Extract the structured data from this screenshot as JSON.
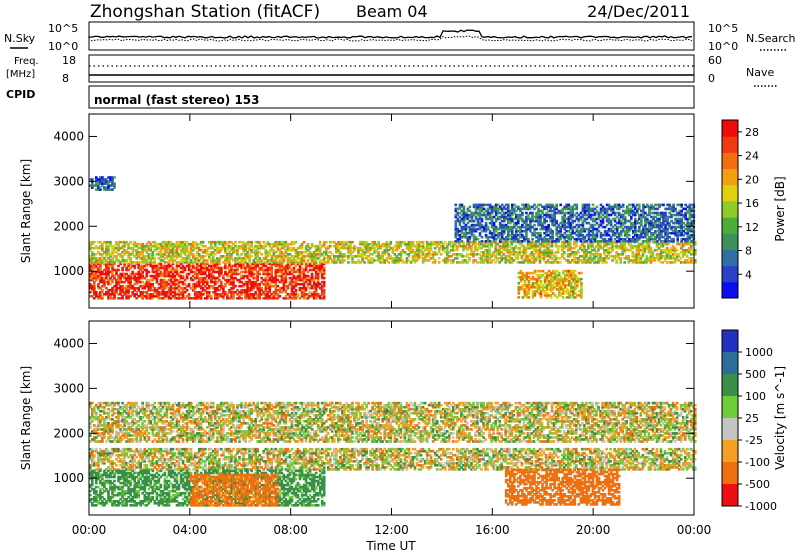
{
  "header": {
    "station": "Zhongshan Station (fitACF)",
    "beam": "Beam 04",
    "date": "24/Dec/2011"
  },
  "summary_panel": {
    "nsky_label": "N.Sky",
    "nsky_ticks": [
      "10^5",
      "10^0"
    ],
    "nsearch_label": "N.Search",
    "nsearch_ticks": [
      "10^5",
      "10^0"
    ],
    "freq_label_1": "Freq.",
    "freq_label_2": "[MHz]",
    "freq_ticks": [
      "18",
      "8"
    ],
    "nave_label": "Nave",
    "nave_ticks": [
      "60",
      "0"
    ],
    "cpid_label": "CPID",
    "cpid_text": "normal (fast stereo) 153"
  },
  "chart_data": [
    {
      "type": "heatmap",
      "title": "",
      "xlabel": "Time UT",
      "ylabel": "Slant Range [km]",
      "xticks": [
        "00:00",
        "04:00",
        "08:00",
        "12:00",
        "16:00",
        "20:00",
        "00:00"
      ],
      "yticks": [
        "1000",
        "2000",
        "3000",
        "4000"
      ],
      "xlim": [
        0,
        24
      ],
      "ylim": [
        180,
        4500
      ],
      "colorbar": {
        "label": "Power [dB]",
        "ticks": [
          "4",
          "8",
          "12",
          "16",
          "20",
          "24",
          "28"
        ],
        "range": [
          0,
          30
        ],
        "colors": [
          "#0c0cf0",
          "#2a3fc8",
          "#2e6fa6",
          "#3d8f5c",
          "#4cae3a",
          "#8fcc2a",
          "#e0d010",
          "#f3a010",
          "#f07010",
          "#f03a10",
          "#ee0c0c"
        ]
      },
      "regions": [
        {
          "t0": 0.0,
          "t1": 9.3,
          "r0": 380,
          "r1": 1150,
          "value": 27
        },
        {
          "t0": 0.0,
          "t1": 24.0,
          "r0": 1180,
          "r1": 1650,
          "value": 17
        },
        {
          "t0": 14.5,
          "t1": 24.0,
          "r0": 1650,
          "r1": 2500,
          "value": 7
        },
        {
          "t0": 17.0,
          "t1": 19.5,
          "r0": 400,
          "r1": 1000,
          "value": 19
        },
        {
          "t0": 0.0,
          "t1": 1.0,
          "r0": 2800,
          "r1": 3100,
          "value": 6
        }
      ]
    },
    {
      "type": "heatmap",
      "title": "",
      "xlabel": "Time UT",
      "ylabel": "Slant Range [km]",
      "xticks": [
        "00:00",
        "04:00",
        "08:00",
        "12:00",
        "16:00",
        "20:00",
        "00:00"
      ],
      "yticks": [
        "1000",
        "2000",
        "3000",
        "4000"
      ],
      "xlim": [
        0,
        24
      ],
      "ylim": [
        180,
        4500
      ],
      "colorbar": {
        "label": "Velocity [m s^-1]",
        "ticks": [
          "1000",
          "500",
          "100",
          "25",
          "-25",
          "-100",
          "-500",
          "-1000"
        ],
        "colors": [
          "#2430c0",
          "#2e6f9a",
          "#3a8f48",
          "#6fcc3a",
          "#c4c4c4",
          "#f4a024",
          "#f07010",
          "#ee1010"
        ]
      },
      "regions": [
        {
          "t0": 0.0,
          "t1": 24.0,
          "r0": 1180,
          "r1": 1650,
          "value": 0
        },
        {
          "t0": 0.0,
          "t1": 9.3,
          "r0": 380,
          "r1": 1150,
          "value": 200
        },
        {
          "t0": 4.0,
          "t1": 7.5,
          "r0": 380,
          "r1": 1100,
          "value": -200
        },
        {
          "t0": 16.5,
          "t1": 21.0,
          "r0": 400,
          "r1": 1200,
          "value": -250
        },
        {
          "t0": 0.0,
          "t1": 24.0,
          "r0": 1800,
          "r1": 2700,
          "value": 0
        }
      ]
    }
  ]
}
